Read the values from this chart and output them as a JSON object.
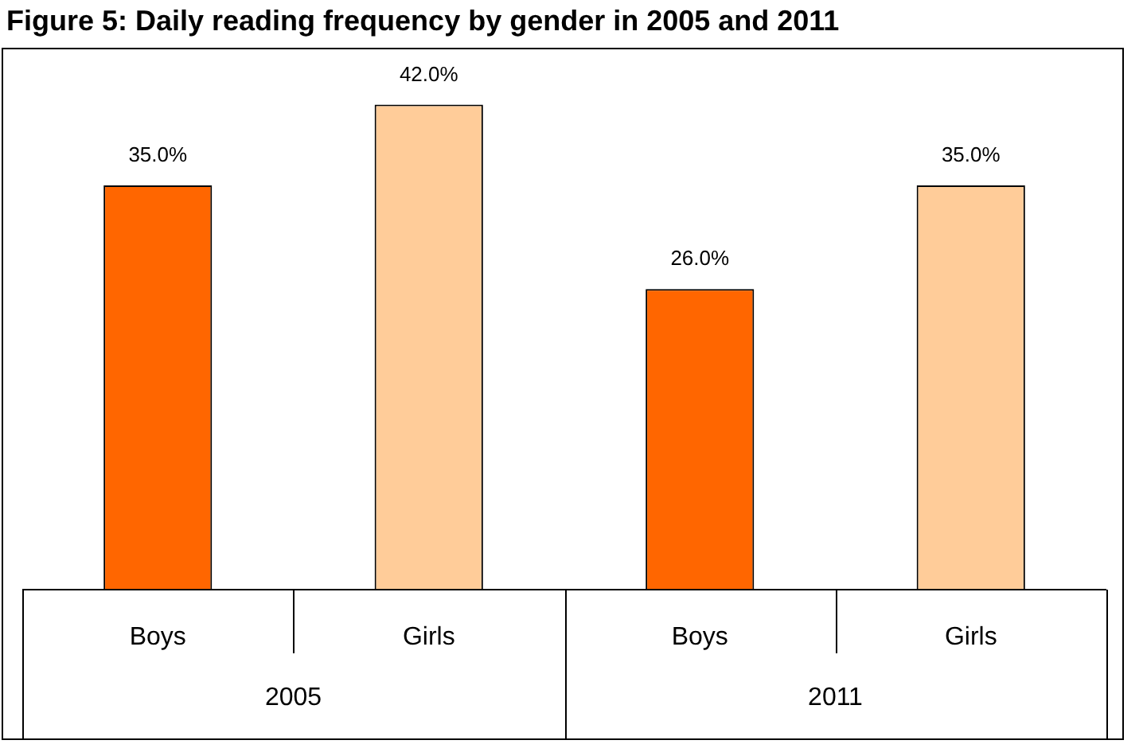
{
  "chart_data": {
    "type": "bar",
    "title": "Figure 5: Daily reading frequency by gender in 2005 and 2011",
    "categories": [
      "2005",
      "2011"
    ],
    "series": [
      {
        "name": "Boys",
        "color": "#ff6600",
        "values": [
          35,
          26
        ],
        "value_labels": [
          "35.0%",
          "26.0%"
        ]
      },
      {
        "name": "Girls",
        "color": "#ffcc99",
        "values": [
          42,
          35
        ],
        "value_labels": [
          "42.0%",
          "35.0%"
        ]
      }
    ],
    "legend": false
  }
}
